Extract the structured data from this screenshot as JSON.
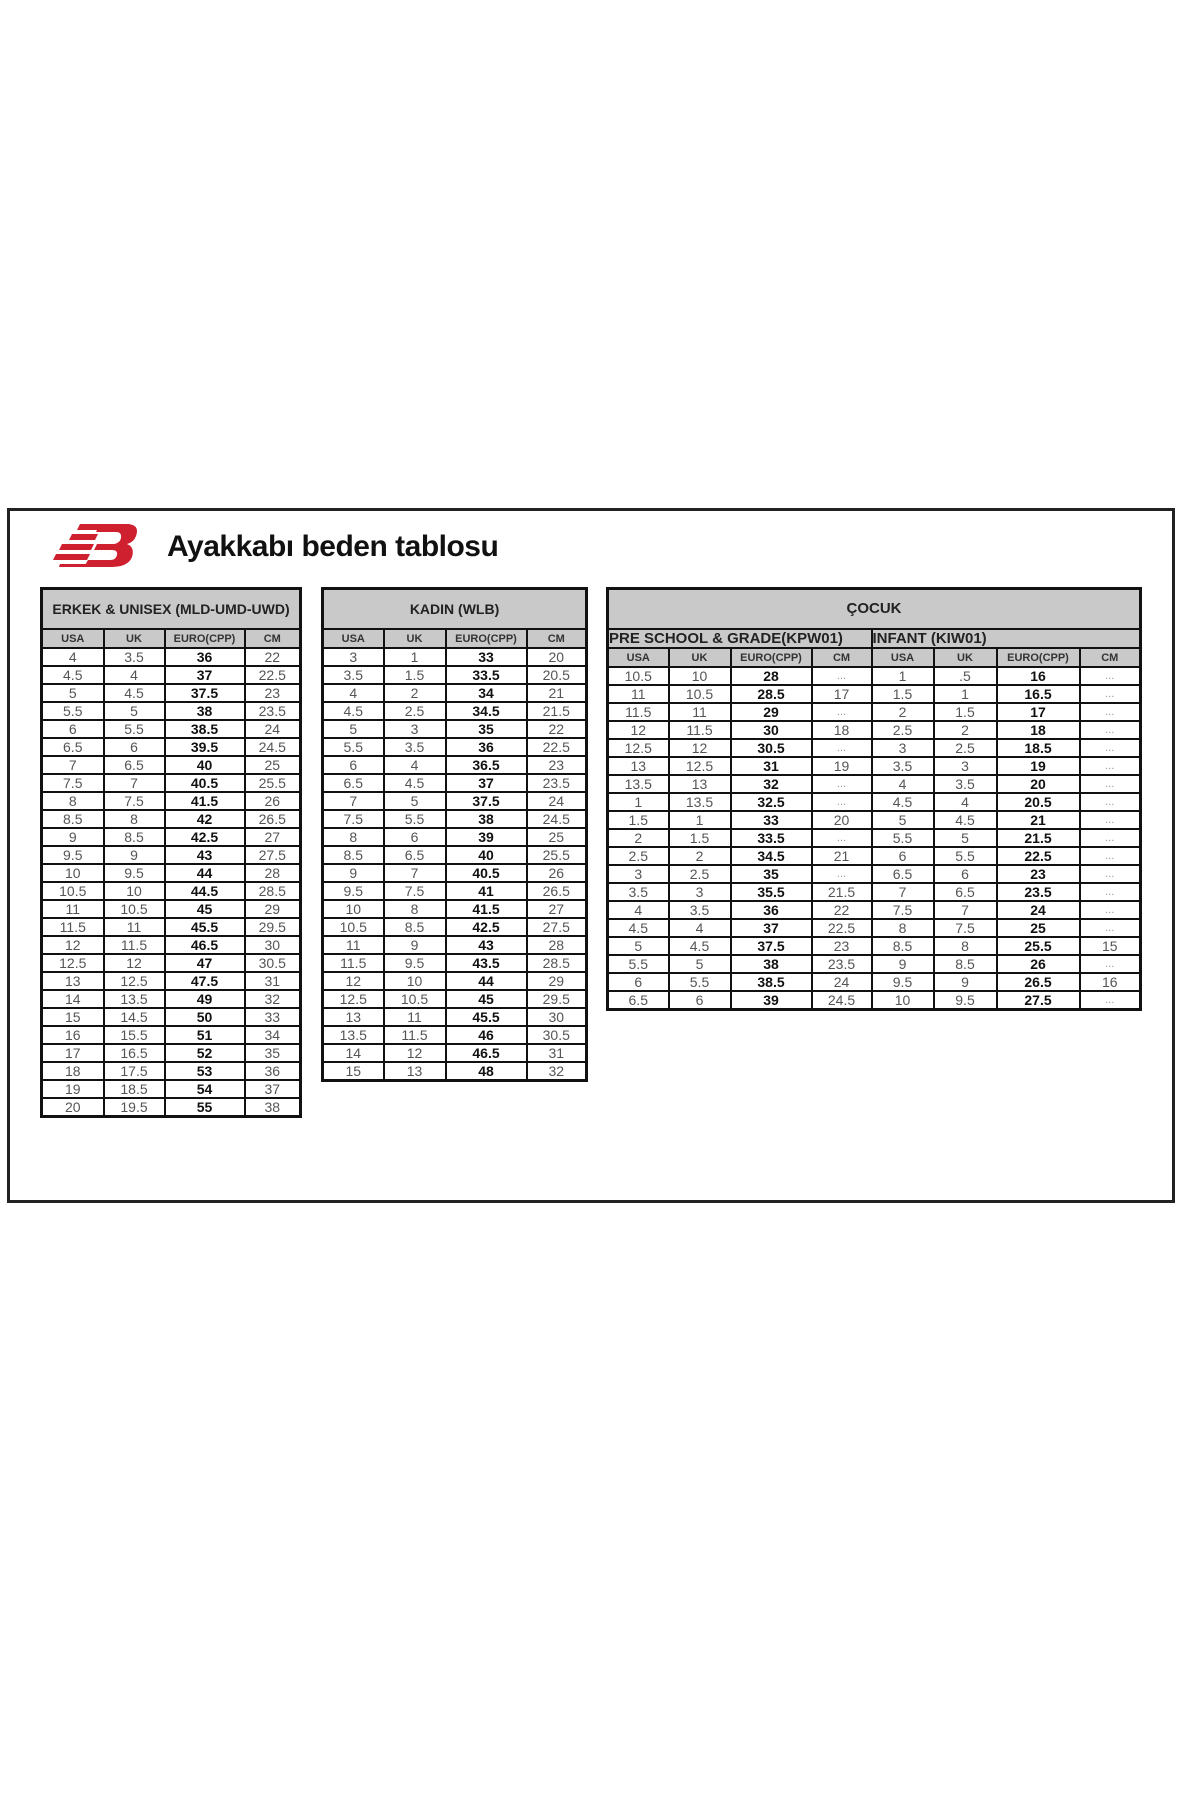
{
  "logo_text": "NB",
  "brand_color": "#cf2030",
  "title": "Ayakkabı beden tablosu",
  "columns": [
    "USA",
    "UK",
    "EURO(CPP)",
    "CM"
  ],
  "men": {
    "title": "ERKEK & UNISEX (MLD-UMD-UWD)",
    "rows": [
      [
        "4",
        "3.5",
        "36",
        "22"
      ],
      [
        "4.5",
        "4",
        "37",
        "22.5"
      ],
      [
        "5",
        "4.5",
        "37.5",
        "23"
      ],
      [
        "5.5",
        "5",
        "38",
        "23.5"
      ],
      [
        "6",
        "5.5",
        "38.5",
        "24"
      ],
      [
        "6.5",
        "6",
        "39.5",
        "24.5"
      ],
      [
        "7",
        "6.5",
        "40",
        "25"
      ],
      [
        "7.5",
        "7",
        "40.5",
        "25.5"
      ],
      [
        "8",
        "7.5",
        "41.5",
        "26"
      ],
      [
        "8.5",
        "8",
        "42",
        "26.5"
      ],
      [
        "9",
        "8.5",
        "42.5",
        "27"
      ],
      [
        "9.5",
        "9",
        "43",
        "27.5"
      ],
      [
        "10",
        "9.5",
        "44",
        "28"
      ],
      [
        "10.5",
        "10",
        "44.5",
        "28.5"
      ],
      [
        "11",
        "10.5",
        "45",
        "29"
      ],
      [
        "11.5",
        "11",
        "45.5",
        "29.5"
      ],
      [
        "12",
        "11.5",
        "46.5",
        "30"
      ],
      [
        "12.5",
        "12",
        "47",
        "30.5"
      ],
      [
        "13",
        "12.5",
        "47.5",
        "31"
      ],
      [
        "14",
        "13.5",
        "49",
        "32"
      ],
      [
        "15",
        "14.5",
        "50",
        "33"
      ],
      [
        "16",
        "15.5",
        "51",
        "34"
      ],
      [
        "17",
        "16.5",
        "52",
        "35"
      ],
      [
        "18",
        "17.5",
        "53",
        "36"
      ],
      [
        "19",
        "18.5",
        "54",
        "37"
      ],
      [
        "20",
        "19.5",
        "55",
        "38"
      ]
    ]
  },
  "women": {
    "title": "KADIN (WLB)",
    "rows": [
      [
        "3",
        "1",
        "33",
        "20"
      ],
      [
        "3.5",
        "1.5",
        "33.5",
        "20.5"
      ],
      [
        "4",
        "2",
        "34",
        "21"
      ],
      [
        "4.5",
        "2.5",
        "34.5",
        "21.5"
      ],
      [
        "5",
        "3",
        "35",
        "22"
      ],
      [
        "5.5",
        "3.5",
        "36",
        "22.5"
      ],
      [
        "6",
        "4",
        "36.5",
        "23"
      ],
      [
        "6.5",
        "4.5",
        "37",
        "23.5"
      ],
      [
        "7",
        "5",
        "37.5",
        "24"
      ],
      [
        "7.5",
        "5.5",
        "38",
        "24.5"
      ],
      [
        "8",
        "6",
        "39",
        "25"
      ],
      [
        "8.5",
        "6.5",
        "40",
        "25.5"
      ],
      [
        "9",
        "7",
        "40.5",
        "26"
      ],
      [
        "9.5",
        "7.5",
        "41",
        "26.5"
      ],
      [
        "10",
        "8",
        "41.5",
        "27"
      ],
      [
        "10.5",
        "8.5",
        "42.5",
        "27.5"
      ],
      [
        "11",
        "9",
        "43",
        "28"
      ],
      [
        "11.5",
        "9.5",
        "43.5",
        "28.5"
      ],
      [
        "12",
        "10",
        "44",
        "29"
      ],
      [
        "12.5",
        "10.5",
        "45",
        "29.5"
      ],
      [
        "13",
        "11",
        "45.5",
        "30"
      ],
      [
        "13.5",
        "11.5",
        "46",
        "30.5"
      ],
      [
        "14",
        "12",
        "46.5",
        "31"
      ],
      [
        "15",
        "13",
        "48",
        "32"
      ]
    ]
  },
  "kids": {
    "title": "ÇOCUK",
    "preschool_title": "PRE SCHOOL & GRADE(KPW01)",
    "infant_title": "INFANT (KIW01)",
    "rows": [
      [
        "10.5",
        "10",
        "28",
        "...",
        "1",
        ".5",
        "16",
        "..."
      ],
      [
        "11",
        "10.5",
        "28.5",
        "17",
        "1.5",
        "1",
        "16.5",
        "..."
      ],
      [
        "11.5",
        "11",
        "29",
        "...",
        "2",
        "1.5",
        "17",
        "..."
      ],
      [
        "12",
        "11.5",
        "30",
        "18",
        "2.5",
        "2",
        "18",
        "..."
      ],
      [
        "12.5",
        "12",
        "30.5",
        "...",
        "3",
        "2.5",
        "18.5",
        "..."
      ],
      [
        "13",
        "12.5",
        "31",
        "19",
        "3.5",
        "3",
        "19",
        "..."
      ],
      [
        "13.5",
        "13",
        "32",
        "...",
        "4",
        "3.5",
        "20",
        "..."
      ],
      [
        "1",
        "13.5",
        "32.5",
        "...",
        "4.5",
        "4",
        "20.5",
        "..."
      ],
      [
        "1.5",
        "1",
        "33",
        "20",
        "5",
        "4.5",
        "21",
        "..."
      ],
      [
        "2",
        "1.5",
        "33.5",
        "...",
        "5.5",
        "5",
        "21.5",
        "..."
      ],
      [
        "2.5",
        "2",
        "34.5",
        "21",
        "6",
        "5.5",
        "22.5",
        "..."
      ],
      [
        "3",
        "2.5",
        "35",
        "...",
        "6.5",
        "6",
        "23",
        "..."
      ],
      [
        "3.5",
        "3",
        "35.5",
        "21.5",
        "7",
        "6.5",
        "23.5",
        "..."
      ],
      [
        "4",
        "3.5",
        "36",
        "22",
        "7.5",
        "7",
        "24",
        "..."
      ],
      [
        "4.5",
        "4",
        "37",
        "22.5",
        "8",
        "7.5",
        "25",
        "..."
      ],
      [
        "5",
        "4.5",
        "37.5",
        "23",
        "8.5",
        "8",
        "25.5",
        "15"
      ],
      [
        "5.5",
        "5",
        "38",
        "23.5",
        "9",
        "8.5",
        "26",
        "..."
      ],
      [
        "6",
        "5.5",
        "38.5",
        "24",
        "9.5",
        "9",
        "26.5",
        "16"
      ],
      [
        "6.5",
        "6",
        "39",
        "24.5",
        "10",
        "9.5",
        "27.5",
        "..."
      ]
    ]
  }
}
